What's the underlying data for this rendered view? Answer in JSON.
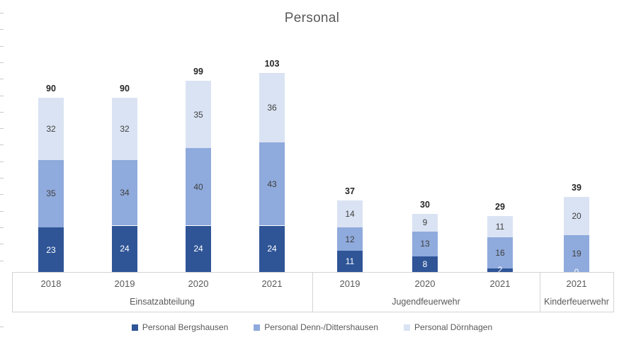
{
  "chart_data": {
    "type": "bar",
    "subtype": "stacked-column",
    "title": "Personal",
    "categories": [
      "2018",
      "2019",
      "2020",
      "2021",
      "2019",
      "2020",
      "2021",
      "2021"
    ],
    "category_groups": [
      {
        "label": "Einsatzabteilung",
        "bar_indices": [
          0,
          1,
          2,
          3
        ]
      },
      {
        "label": "Jugendfeuerwehr",
        "bar_indices": [
          4,
          5,
          6
        ]
      },
      {
        "label": "Kinderfeuerwehr",
        "bar_indices": [
          7
        ]
      }
    ],
    "series": [
      {
        "name": "Personal Bergshausen",
        "color": "#2F5597",
        "label_color": "#FFFFFF",
        "values": [
          23,
          24,
          24,
          24,
          11,
          8,
          2,
          0
        ]
      },
      {
        "name": "Personal Denn-/Dittershausen",
        "color": "#8FAADC",
        "label_color": "#404040",
        "values": [
          35,
          34,
          40,
          43,
          12,
          13,
          16,
          19
        ]
      },
      {
        "name": "Personal Dörnhagen",
        "color": "#DAE3F3",
        "label_color": "#404040",
        "values": [
          32,
          32,
          35,
          36,
          14,
          9,
          11,
          20
        ]
      }
    ],
    "totals": [
      90,
      90,
      99,
      103,
      37,
      30,
      29,
      39
    ],
    "ylim": [
      0,
      110
    ],
    "gridlines": false,
    "value_axis_labels_visible": false,
    "legend_position": "bottom"
  },
  "legend": {
    "items": [
      {
        "label": "Personal Bergshausen",
        "color": "#2F5597"
      },
      {
        "label": "Personal Denn-/Dittershausen",
        "color": "#8FAADC"
      },
      {
        "label": "Personal Dörnhagen",
        "color": "#DAE3F3"
      }
    ]
  },
  "colors": {
    "background": "#FFFFFF",
    "axis_line": "#D4D4D4",
    "axis_text": "#595959",
    "title_text": "#595959",
    "total_label": "#262626",
    "tick_mark": "#C9C9C9"
  }
}
